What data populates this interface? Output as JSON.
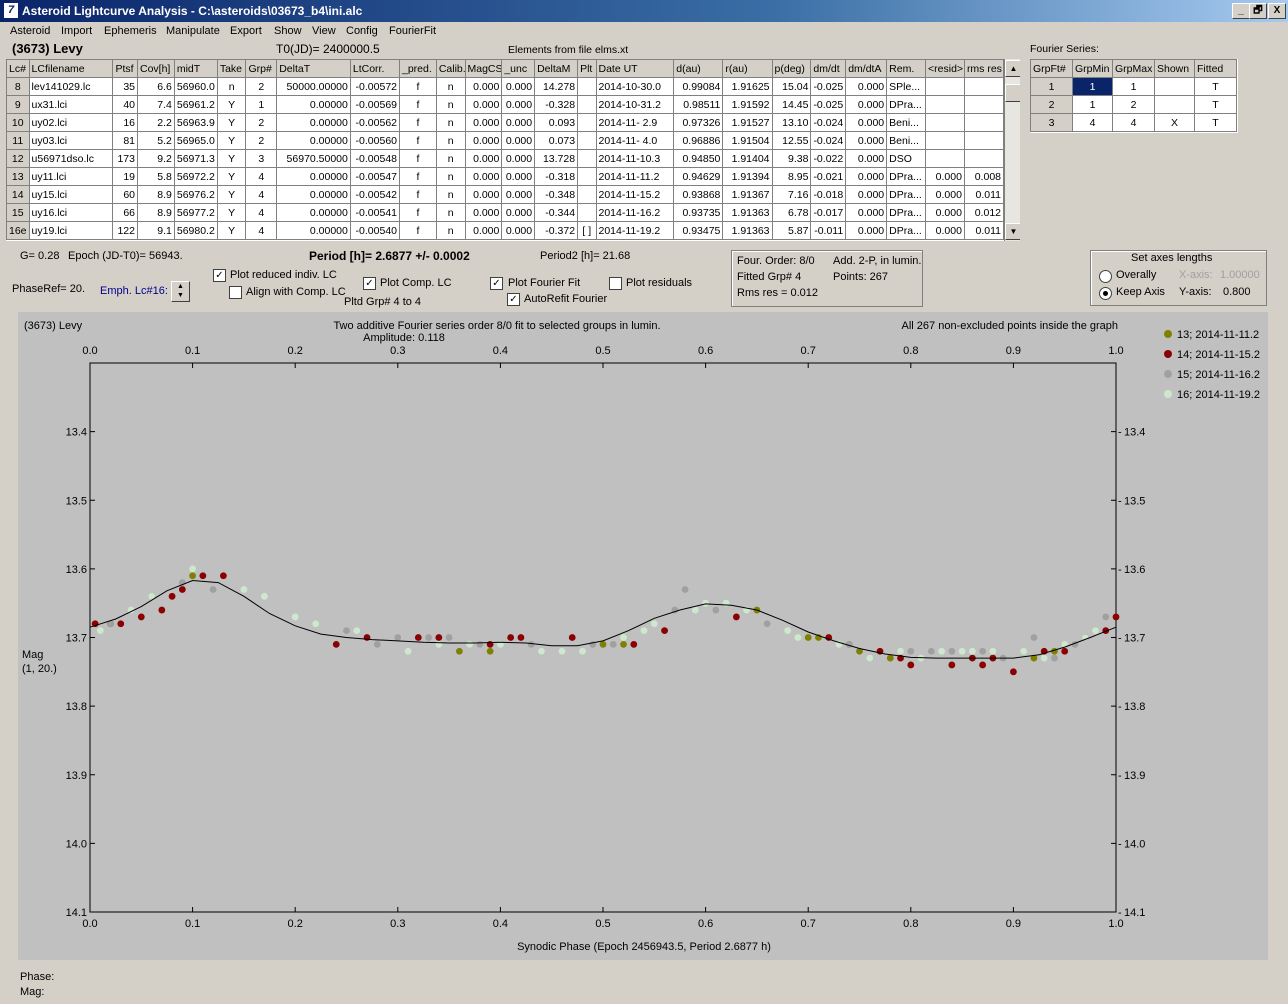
{
  "window": {
    "title": "Asteroid Lightcurve Analysis - C:\\asteroids\\03673_b4\\ini.alc",
    "controls": [
      "_",
      "🗗",
      "X"
    ]
  },
  "menu": [
    "Asteroid",
    "Import",
    "Ephemeris",
    "Manipulate",
    "Export",
    "Show",
    "View",
    "Config",
    "FourierFit"
  ],
  "header": {
    "asteroid": "(3673) Levy",
    "t0": "T0(JD)= 2400000.5",
    "elements": "Elements from file elms.xt"
  },
  "table": {
    "columns": [
      "Lc#",
      "LCfilename",
      "Ptsf",
      "Cov[h]",
      "midT",
      "Take",
      "Grp#",
      "DeltaT",
      "LtCorr.",
      "_pred.",
      "Calib.",
      "MagCS",
      "_unc",
      "DeltaM",
      "Plt",
      "Date UT",
      "d(au)",
      "r(au)",
      "p(deg)",
      "dm/dt",
      "dm/dtA",
      "Rem.",
      "<resid>",
      "rms res"
    ],
    "rows": [
      [
        "8",
        "lev141029.lc",
        "35",
        "6.6",
        "56960.0",
        "n",
        "2",
        "50000.00000",
        "-0.00572",
        "f",
        "n",
        "0.000",
        "0.000",
        "14.278",
        "",
        "2014-10-30.0",
        "0.99084",
        "1.91625",
        "15.04",
        "-0.025",
        "0.000",
        "SPle...",
        "",
        ""
      ],
      [
        "9",
        "ux31.lci",
        "40",
        "7.4",
        "56961.2",
        "Y",
        "1",
        "0.00000",
        "-0.00569",
        "f",
        "n",
        "0.000",
        "0.000",
        "-0.328",
        "",
        "2014-10-31.2",
        "0.98511",
        "1.91592",
        "14.45",
        "-0.025",
        "0.000",
        "DPra...",
        "",
        ""
      ],
      [
        "10",
        "uy02.lci",
        "16",
        "2.2",
        "56963.9",
        "Y",
        "2",
        "0.00000",
        "-0.00562",
        "f",
        "n",
        "0.000",
        "0.000",
        "0.093",
        "",
        "2014-11- 2.9",
        "0.97326",
        "1.91527",
        "13.10",
        "-0.024",
        "0.000",
        "Beni...",
        "",
        ""
      ],
      [
        "11",
        "uy03.lci",
        "81",
        "5.2",
        "56965.0",
        "Y",
        "2",
        "0.00000",
        "-0.00560",
        "f",
        "n",
        "0.000",
        "0.000",
        "0.073",
        "",
        "2014-11- 4.0",
        "0.96886",
        "1.91504",
        "12.55",
        "-0.024",
        "0.000",
        "Beni...",
        "",
        ""
      ],
      [
        "12",
        "u56971dso.lc",
        "173",
        "9.2",
        "56971.3",
        "Y",
        "3",
        "56970.50000",
        "-0.00548",
        "f",
        "n",
        "0.000",
        "0.000",
        "13.728",
        "",
        "2014-11-10.3",
        "0.94850",
        "1.91404",
        "9.38",
        "-0.022",
        "0.000",
        "DSO",
        "",
        ""
      ],
      [
        "13",
        "uy11.lci",
        "19",
        "5.8",
        "56972.2",
        "Y",
        "4",
        "0.00000",
        "-0.00547",
        "f",
        "n",
        "0.000",
        "0.000",
        "-0.318",
        "",
        "2014-11-11.2",
        "0.94629",
        "1.91394",
        "8.95",
        "-0.021",
        "0.000",
        "DPra...",
        "0.000",
        "0.008"
      ],
      [
        "14",
        "uy15.lci",
        "60",
        "8.9",
        "56976.2",
        "Y",
        "4",
        "0.00000",
        "-0.00542",
        "f",
        "n",
        "0.000",
        "0.000",
        "-0.348",
        "",
        "2014-11-15.2",
        "0.93868",
        "1.91367",
        "7.16",
        "-0.018",
        "0.000",
        "DPra...",
        "0.000",
        "0.011"
      ],
      [
        "15",
        "uy16.lci",
        "66",
        "8.9",
        "56977.2",
        "Y",
        "4",
        "0.00000",
        "-0.00541",
        "f",
        "n",
        "0.000",
        "0.000",
        "-0.344",
        "",
        "2014-11-16.2",
        "0.93735",
        "1.91363",
        "6.78",
        "-0.017",
        "0.000",
        "DPra...",
        "0.000",
        "0.012"
      ],
      [
        "16e",
        "uy19.lci",
        "122",
        "9.1",
        "56980.2",
        "Y",
        "4",
        "0.00000",
        "-0.00540",
        "f",
        "n",
        "0.000",
        "0.000",
        "-0.372",
        "[ ]",
        "2014-11-19.2",
        "0.93475",
        "1.91363",
        "5.87",
        "-0.011",
        "0.000",
        "DPra...",
        "0.000",
        "0.011"
      ]
    ]
  },
  "fourier": {
    "title": "Fourier Series:",
    "columns": [
      "GrpFt#",
      "GrpMin",
      "GrpMax",
      "Shown",
      "Fitted"
    ],
    "rows": [
      [
        "1",
        "1",
        "1",
        "",
        "T"
      ],
      [
        "2",
        "1",
        "2",
        "",
        "T"
      ],
      [
        "3",
        "4",
        "4",
        "X",
        "T"
      ]
    ]
  },
  "controls": {
    "g": "G= 0.28",
    "epoch": "Epoch (JD-T0)= 56943.",
    "period": "Period [h]= 2.6877 +/- 0.0002",
    "period2": "Period2 [h]= 21.68",
    "phaseref": "PhaseRef= 20.",
    "emph": "Emph. Lc#16:",
    "plot_reduced": "Plot reduced indiv. LC",
    "align_comp": "Align with Comp. LC",
    "plot_comp": "Plot Comp. LC",
    "pltd_grp": "Pltd Grp#  4   to   4",
    "plot_fourier": "Plot Fourier Fit",
    "autorefit": "AutoRefit Fourier",
    "plot_residuals": "Plot residuals",
    "info": {
      "four_order": "Four. Order:  8/0",
      "add": "Add. 2-P, in lumin.",
      "fitted_grp": "Fitted Grp# 4",
      "points": "Points: 267",
      "rms": "Rms res      = 0.012"
    },
    "axes": {
      "title": "Set axes lengths",
      "overally": "Overally",
      "keep_axis": "Keep Axis",
      "xaxis_label": "X-axis:",
      "xaxis_value": "1.00000",
      "yaxis_label": "Y-axis:",
      "yaxis_value": "0.800"
    }
  },
  "plot": {
    "title_left": "(3673) Levy",
    "title_center": "Two additive Fourier series order 8/0 fit to selected groups in lumin.",
    "amplitude": "Amplitude: 0.118",
    "title_right": "All 267 non-excluded points inside the graph",
    "ylabel": "Mag",
    "ylabel2": "(1, 20.)",
    "xlabel": "Synodic Phase (Epoch 2456943.5, Period 2.6877 h)",
    "footer_phase": "Phase:",
    "footer_mag": "Mag:"
  },
  "chart_data": {
    "type": "scatter",
    "title": "Two additive Fourier series order 8/0 fit to selected groups in lumin.",
    "xlabel": "Synodic Phase (Epoch 2456943.5, Period 2.6877 h)",
    "ylabel": "Mag",
    "xlim": [
      0.0,
      1.0
    ],
    "ylim": [
      14.1,
      13.3
    ],
    "y_inverted": true,
    "x_ticks": [
      "0.0",
      "0.1",
      "0.2",
      "0.3",
      "0.4",
      "0.5",
      "0.6",
      "0.7",
      "0.8",
      "0.9",
      "1.0"
    ],
    "y_ticks": [
      "13.4",
      "13.5",
      "13.6",
      "13.7",
      "13.8",
      "13.9",
      "14.0",
      "14.1"
    ],
    "legend_position": "right",
    "series": [
      {
        "name": "13; 2014-11-11.2",
        "color": "#808000",
        "points": [
          [
            0.06,
            13.64
          ],
          [
            0.1,
            13.61
          ],
          [
            0.36,
            13.72
          ],
          [
            0.39,
            13.72
          ],
          [
            0.5,
            13.71
          ],
          [
            0.52,
            13.71
          ],
          [
            0.65,
            13.66
          ],
          [
            0.7,
            13.7
          ],
          [
            0.71,
            13.7
          ],
          [
            0.74,
            13.71
          ],
          [
            0.75,
            13.72
          ],
          [
            0.78,
            13.73
          ],
          [
            0.92,
            13.73
          ],
          [
            0.94,
            13.72
          ]
        ]
      },
      {
        "name": "14; 2014-11-15.2",
        "color": "#8b0000",
        "points": [
          [
            0.005,
            13.68
          ],
          [
            0.02,
            13.68
          ],
          [
            0.03,
            13.68
          ],
          [
            0.05,
            13.67
          ],
          [
            0.07,
            13.66
          ],
          [
            0.08,
            13.64
          ],
          [
            0.09,
            13.63
          ],
          [
            0.11,
            13.61
          ],
          [
            0.13,
            13.61
          ],
          [
            0.24,
            13.71
          ],
          [
            0.27,
            13.7
          ],
          [
            0.32,
            13.7
          ],
          [
            0.34,
            13.7
          ],
          [
            0.39,
            13.71
          ],
          [
            0.41,
            13.7
          ],
          [
            0.42,
            13.7
          ],
          [
            0.47,
            13.7
          ],
          [
            0.53,
            13.71
          ],
          [
            0.56,
            13.69
          ],
          [
            0.63,
            13.67
          ],
          [
            0.72,
            13.7
          ],
          [
            0.77,
            13.72
          ],
          [
            0.79,
            13.73
          ],
          [
            0.8,
            13.74
          ],
          [
            0.84,
            13.74
          ],
          [
            0.86,
            13.73
          ],
          [
            0.87,
            13.74
          ],
          [
            0.88,
            13.73
          ],
          [
            0.9,
            13.75
          ],
          [
            0.93,
            13.72
          ],
          [
            0.95,
            13.72
          ],
          [
            0.97,
            13.7
          ],
          [
            0.99,
            13.69
          ],
          [
            1.0,
            13.67
          ]
        ]
      },
      {
        "name": "15; 2014-11-16.2",
        "color": "#a0a0a0",
        "points": [
          [
            0.02,
            13.68
          ],
          [
            0.09,
            13.62
          ],
          [
            0.12,
            13.63
          ],
          [
            0.25,
            13.69
          ],
          [
            0.28,
            13.71
          ],
          [
            0.3,
            13.7
          ],
          [
            0.33,
            13.7
          ],
          [
            0.35,
            13.7
          ],
          [
            0.38,
            13.71
          ],
          [
            0.43,
            13.71
          ],
          [
            0.49,
            13.71
          ],
          [
            0.51,
            13.71
          ],
          [
            0.57,
            13.66
          ],
          [
            0.58,
            13.63
          ],
          [
            0.61,
            13.66
          ],
          [
            0.66,
            13.68
          ],
          [
            0.74,
            13.71
          ],
          [
            0.76,
            13.73
          ],
          [
            0.8,
            13.72
          ],
          [
            0.82,
            13.72
          ],
          [
            0.84,
            13.72
          ],
          [
            0.87,
            13.72
          ],
          [
            0.89,
            13.73
          ],
          [
            0.92,
            13.7
          ],
          [
            0.94,
            13.73
          ],
          [
            0.96,
            13.71
          ],
          [
            0.99,
            13.67
          ]
        ]
      },
      {
        "name": "16; 2014-11-19.2",
        "color": "#cde8cd",
        "points": [
          [
            0.01,
            13.69
          ],
          [
            0.04,
            13.66
          ],
          [
            0.06,
            13.64
          ],
          [
            0.1,
            13.6
          ],
          [
            0.15,
            13.63
          ],
          [
            0.17,
            13.64
          ],
          [
            0.2,
            13.67
          ],
          [
            0.22,
            13.68
          ],
          [
            0.26,
            13.69
          ],
          [
            0.31,
            13.72
          ],
          [
            0.34,
            13.71
          ],
          [
            0.37,
            13.71
          ],
          [
            0.4,
            13.71
          ],
          [
            0.44,
            13.72
          ],
          [
            0.46,
            13.72
          ],
          [
            0.48,
            13.72
          ],
          [
            0.52,
            13.7
          ],
          [
            0.54,
            13.69
          ],
          [
            0.55,
            13.68
          ],
          [
            0.59,
            13.66
          ],
          [
            0.6,
            13.65
          ],
          [
            0.62,
            13.65
          ],
          [
            0.64,
            13.66
          ],
          [
            0.68,
            13.69
          ],
          [
            0.69,
            13.7
          ],
          [
            0.73,
            13.71
          ],
          [
            0.76,
            13.73
          ],
          [
            0.79,
            13.72
          ],
          [
            0.81,
            13.73
          ],
          [
            0.83,
            13.72
          ],
          [
            0.85,
            13.72
          ],
          [
            0.86,
            13.72
          ],
          [
            0.88,
            13.72
          ],
          [
            0.91,
            13.72
          ],
          [
            0.93,
            13.73
          ],
          [
            0.95,
            13.71
          ],
          [
            0.97,
            13.7
          ],
          [
            0.98,
            13.69
          ]
        ]
      }
    ],
    "fit_curve": {
      "x": [
        0.0,
        0.025,
        0.05,
        0.075,
        0.1,
        0.125,
        0.15,
        0.175,
        0.2,
        0.225,
        0.25,
        0.275,
        0.3,
        0.325,
        0.35,
        0.375,
        0.4,
        0.425,
        0.45,
        0.475,
        0.5,
        0.525,
        0.55,
        0.575,
        0.6,
        0.625,
        0.65,
        0.675,
        0.7,
        0.725,
        0.75,
        0.775,
        0.8,
        0.825,
        0.85,
        0.875,
        0.9,
        0.925,
        0.95,
        0.975,
        1.0
      ],
      "y": [
        13.685,
        13.673,
        13.655,
        13.632,
        13.617,
        13.62,
        13.64,
        13.665,
        13.683,
        13.695,
        13.7,
        13.703,
        13.705,
        13.707,
        13.708,
        13.708,
        13.707,
        13.708,
        13.712,
        13.712,
        13.705,
        13.69,
        13.672,
        13.66,
        13.651,
        13.653,
        13.66,
        13.675,
        13.692,
        13.705,
        13.716,
        13.724,
        13.729,
        13.73,
        13.73,
        13.73,
        13.73,
        13.725,
        13.714,
        13.7,
        13.685
      ]
    }
  }
}
